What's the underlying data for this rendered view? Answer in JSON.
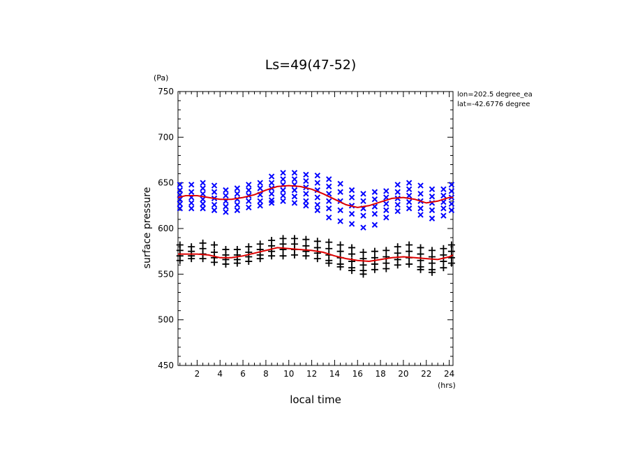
{
  "chart_data": {
    "type": "scatter",
    "title": "Ls=49(47-52)",
    "xlabel": "local time",
    "ylabel": "surface pressure",
    "x_unit": "(hrs)",
    "y_unit": "(Pa)",
    "xlim": [
      0.33,
      24.33
    ],
    "ylim": [
      450,
      750
    ],
    "xticks": [
      2,
      4,
      6,
      8,
      10,
      12,
      14,
      16,
      18,
      20,
      22,
      24
    ],
    "yticks": [
      450,
      500,
      550,
      600,
      650,
      700,
      750
    ],
    "annotations": [
      "lon=202.5 degree_ea",
      "lat=-42.6776 degree"
    ],
    "colors": {
      "upper_points": "#0000ff",
      "lower_points": "#000000",
      "fit_line": "#dd0000",
      "axes": "#000000"
    },
    "series": [
      {
        "marker": "x",
        "color": "#0000ff",
        "points": [
          [
            0.5,
            648
          ],
          [
            0.5,
            642
          ],
          [
            0.5,
            637
          ],
          [
            0.5,
            632
          ],
          [
            0.5,
            627
          ],
          [
            0.5,
            622
          ],
          [
            1.5,
            648
          ],
          [
            1.5,
            640
          ],
          [
            1.5,
            634
          ],
          [
            1.5,
            628
          ],
          [
            1.5,
            622
          ],
          [
            2.5,
            650
          ],
          [
            2.5,
            644
          ],
          [
            2.5,
            638
          ],
          [
            2.5,
            632
          ],
          [
            2.5,
            627
          ],
          [
            2.5,
            622
          ],
          [
            3.5,
            647
          ],
          [
            3.5,
            640
          ],
          [
            3.5,
            633
          ],
          [
            3.5,
            626
          ],
          [
            3.5,
            620
          ],
          [
            4.5,
            642
          ],
          [
            4.5,
            636
          ],
          [
            4.5,
            630
          ],
          [
            4.5,
            624
          ],
          [
            4.5,
            618
          ],
          [
            5.5,
            644
          ],
          [
            5.5,
            638
          ],
          [
            5.5,
            632
          ],
          [
            5.5,
            626
          ],
          [
            5.5,
            620
          ],
          [
            6.5,
            648
          ],
          [
            6.5,
            642
          ],
          [
            6.5,
            636
          ],
          [
            6.5,
            630
          ],
          [
            6.5,
            623
          ],
          [
            7.5,
            650
          ],
          [
            7.5,
            644
          ],
          [
            7.5,
            637
          ],
          [
            7.5,
            630
          ],
          [
            7.5,
            625
          ],
          [
            8.5,
            657
          ],
          [
            8.5,
            650
          ],
          [
            8.5,
            644
          ],
          [
            8.5,
            638
          ],
          [
            8.5,
            631
          ],
          [
            8.5,
            628
          ],
          [
            9.5,
            661
          ],
          [
            9.5,
            654
          ],
          [
            9.5,
            648
          ],
          [
            9.5,
            642
          ],
          [
            9.5,
            636
          ],
          [
            9.5,
            630
          ],
          [
            10.5,
            661
          ],
          [
            10.5,
            654
          ],
          [
            10.5,
            648
          ],
          [
            10.5,
            642
          ],
          [
            10.5,
            635
          ],
          [
            10.5,
            628
          ],
          [
            11.5,
            659
          ],
          [
            11.5,
            652
          ],
          [
            11.5,
            645
          ],
          [
            11.5,
            638
          ],
          [
            11.5,
            630
          ],
          [
            11.5,
            625
          ],
          [
            12.5,
            658
          ],
          [
            12.5,
            650
          ],
          [
            12.5,
            642
          ],
          [
            12.5,
            634
          ],
          [
            12.5,
            626
          ],
          [
            12.5,
            620
          ],
          [
            13.5,
            654
          ],
          [
            13.5,
            646
          ],
          [
            13.5,
            638
          ],
          [
            13.5,
            630
          ],
          [
            13.5,
            622
          ],
          [
            13.5,
            612
          ],
          [
            14.5,
            649
          ],
          [
            14.5,
            640
          ],
          [
            14.5,
            630
          ],
          [
            14.5,
            620
          ],
          [
            14.5,
            608
          ],
          [
            15.5,
            642
          ],
          [
            15.5,
            634
          ],
          [
            15.5,
            625
          ],
          [
            15.5,
            616
          ],
          [
            15.5,
            605
          ],
          [
            16.5,
            638
          ],
          [
            16.5,
            630
          ],
          [
            16.5,
            622
          ],
          [
            16.5,
            614
          ],
          [
            16.5,
            601
          ],
          [
            17.5,
            640
          ],
          [
            17.5,
            632
          ],
          [
            17.5,
            624
          ],
          [
            17.5,
            616
          ],
          [
            17.5,
            604
          ],
          [
            18.5,
            641
          ],
          [
            18.5,
            634
          ],
          [
            18.5,
            627
          ],
          [
            18.5,
            620
          ],
          [
            18.5,
            612
          ],
          [
            19.5,
            648
          ],
          [
            19.5,
            640
          ],
          [
            19.5,
            633
          ],
          [
            19.5,
            626
          ],
          [
            19.5,
            619
          ],
          [
            20.5,
            650
          ],
          [
            20.5,
            643
          ],
          [
            20.5,
            636
          ],
          [
            20.5,
            629
          ],
          [
            20.5,
            622
          ],
          [
            21.5,
            647
          ],
          [
            21.5,
            638
          ],
          [
            21.5,
            630
          ],
          [
            21.5,
            622
          ],
          [
            21.5,
            615
          ],
          [
            22.5,
            643
          ],
          [
            22.5,
            635
          ],
          [
            22.5,
            628
          ],
          [
            22.5,
            620
          ],
          [
            22.5,
            611
          ],
          [
            23.5,
            643
          ],
          [
            23.5,
            636
          ],
          [
            23.5,
            629
          ],
          [
            23.5,
            622
          ],
          [
            23.5,
            614
          ],
          [
            24.2,
            648
          ],
          [
            24.2,
            641
          ],
          [
            24.2,
            634
          ],
          [
            24.2,
            627
          ],
          [
            24.2,
            620
          ]
        ]
      },
      {
        "marker": "+",
        "color": "#000000",
        "points": [
          [
            0.5,
            582
          ],
          [
            0.5,
            576
          ],
          [
            0.5,
            570
          ],
          [
            0.5,
            565
          ],
          [
            1.5,
            580
          ],
          [
            1.5,
            575
          ],
          [
            1.5,
            570
          ],
          [
            1.5,
            567
          ],
          [
            2.5,
            584
          ],
          [
            2.5,
            578
          ],
          [
            2.5,
            572
          ],
          [
            2.5,
            567
          ],
          [
            3.5,
            582
          ],
          [
            3.5,
            574
          ],
          [
            3.5,
            568
          ],
          [
            3.5,
            563
          ],
          [
            4.5,
            577
          ],
          [
            4.5,
            571
          ],
          [
            4.5,
            566
          ],
          [
            4.5,
            561
          ],
          [
            5.5,
            577
          ],
          [
            5.5,
            571
          ],
          [
            5.5,
            566
          ],
          [
            5.5,
            562
          ],
          [
            6.5,
            580
          ],
          [
            6.5,
            574
          ],
          [
            6.5,
            569
          ],
          [
            6.5,
            564
          ],
          [
            7.5,
            583
          ],
          [
            7.5,
            577
          ],
          [
            7.5,
            571
          ],
          [
            7.5,
            567
          ],
          [
            8.5,
            587
          ],
          [
            8.5,
            581
          ],
          [
            8.5,
            575
          ],
          [
            8.5,
            570
          ],
          [
            9.5,
            589
          ],
          [
            9.5,
            583
          ],
          [
            9.5,
            577
          ],
          [
            9.5,
            570
          ],
          [
            10.5,
            589
          ],
          [
            10.5,
            583
          ],
          [
            10.5,
            577
          ],
          [
            10.5,
            571
          ],
          [
            11.5,
            588
          ],
          [
            11.5,
            581
          ],
          [
            11.5,
            575
          ],
          [
            11.5,
            570
          ],
          [
            12.5,
            586
          ],
          [
            12.5,
            579
          ],
          [
            12.5,
            573
          ],
          [
            12.5,
            567
          ],
          [
            13.5,
            585
          ],
          [
            13.5,
            578
          ],
          [
            13.5,
            571
          ],
          [
            13.5,
            565
          ],
          [
            13.5,
            562
          ],
          [
            14.5,
            582
          ],
          [
            14.5,
            575
          ],
          [
            14.5,
            568
          ],
          [
            14.5,
            561
          ],
          [
            14.5,
            558
          ],
          [
            15.5,
            579
          ],
          [
            15.5,
            572
          ],
          [
            15.5,
            564
          ],
          [
            15.5,
            557
          ],
          [
            15.5,
            554
          ],
          [
            16.5,
            574
          ],
          [
            16.5,
            567
          ],
          [
            16.5,
            560
          ],
          [
            16.5,
            554
          ],
          [
            16.5,
            550
          ],
          [
            17.5,
            575
          ],
          [
            17.5,
            568
          ],
          [
            17.5,
            561
          ],
          [
            17.5,
            555
          ],
          [
            18.5,
            576
          ],
          [
            18.5,
            569
          ],
          [
            18.5,
            562
          ],
          [
            18.5,
            556
          ],
          [
            19.5,
            580
          ],
          [
            19.5,
            573
          ],
          [
            19.5,
            566
          ],
          [
            19.5,
            560
          ],
          [
            20.5,
            582
          ],
          [
            20.5,
            575
          ],
          [
            20.5,
            568
          ],
          [
            20.5,
            561
          ],
          [
            21.5,
            579
          ],
          [
            21.5,
            572
          ],
          [
            21.5,
            565
          ],
          [
            21.5,
            558
          ],
          [
            21.5,
            555
          ],
          [
            22.5,
            576
          ],
          [
            22.5,
            569
          ],
          [
            22.5,
            562
          ],
          [
            22.5,
            555
          ],
          [
            22.5,
            552
          ],
          [
            23.5,
            578
          ],
          [
            23.5,
            571
          ],
          [
            23.5,
            564
          ],
          [
            23.5,
            557
          ],
          [
            24.2,
            582
          ],
          [
            24.2,
            575
          ],
          [
            24.2,
            568
          ],
          [
            24.2,
            562
          ]
        ]
      },
      {
        "marker": "line",
        "color": "#dd0000",
        "points": [
          [
            0.33,
            634
          ],
          [
            1,
            636
          ],
          [
            2,
            636
          ],
          [
            3,
            634
          ],
          [
            4,
            632
          ],
          [
            5,
            632
          ],
          [
            6,
            634
          ],
          [
            7,
            637
          ],
          [
            8,
            642
          ],
          [
            9,
            646
          ],
          [
            10,
            647
          ],
          [
            11,
            646
          ],
          [
            12,
            643
          ],
          [
            13,
            638
          ],
          [
            14,
            632
          ],
          [
            15,
            626
          ],
          [
            16,
            623
          ],
          [
            17,
            625
          ],
          [
            18,
            629
          ],
          [
            19,
            633
          ],
          [
            20,
            634
          ],
          [
            21,
            632
          ],
          [
            22,
            628
          ],
          [
            23,
            630
          ],
          [
            24,
            634
          ],
          [
            24.33,
            634
          ]
        ]
      },
      {
        "marker": "line",
        "color": "#dd0000",
        "points": [
          [
            0.33,
            572
          ],
          [
            1,
            572
          ],
          [
            2,
            572
          ],
          [
            3,
            571
          ],
          [
            4,
            568
          ],
          [
            5,
            568
          ],
          [
            6,
            570
          ],
          [
            7,
            573
          ],
          [
            8,
            576
          ],
          [
            9,
            579
          ],
          [
            10,
            578
          ],
          [
            11,
            577
          ],
          [
            12,
            576
          ],
          [
            13,
            574
          ],
          [
            14,
            570
          ],
          [
            15,
            567
          ],
          [
            16,
            565
          ],
          [
            17,
            564
          ],
          [
            18,
            566
          ],
          [
            19,
            568
          ],
          [
            20,
            569
          ],
          [
            21,
            568
          ],
          [
            22,
            567
          ],
          [
            23,
            566
          ],
          [
            24,
            569
          ],
          [
            24.33,
            571
          ]
        ]
      }
    ]
  }
}
